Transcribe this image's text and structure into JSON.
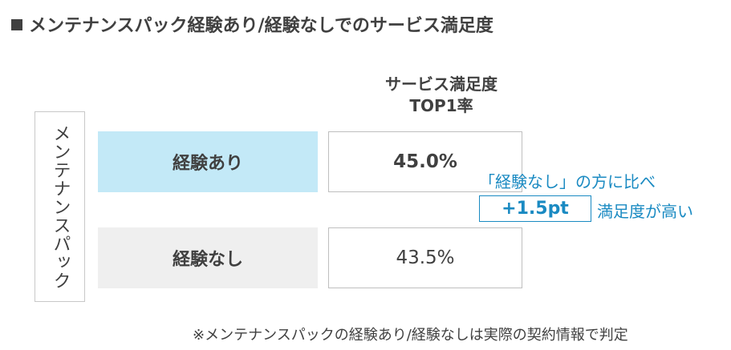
{
  "title": "メンテナンスパック経験あり/経験なしでのサービス満足度",
  "column_header": {
    "line1": "サービス満足度",
    "line2": "TOP1率"
  },
  "group_label": "メンテナンスパック",
  "callout": {
    "line1": "「経験なし」の方に比べ",
    "diff": "+1.5pt",
    "line2": "満足度が高い"
  },
  "footnote": "※メンテナンスパックの経験あり/経験なしは実際の契約情報で判定",
  "colors": {
    "row1_fill": "#c3e9f7",
    "row2_fill": "#efefef",
    "accent": "#1a8ac2",
    "text": "#404040"
  },
  "chart_data": {
    "type": "table",
    "title": "メンテナンスパック経験あり/経験なしでのサービス満足度",
    "columns": [
      "サービス満足度 TOP1率"
    ],
    "rows": [
      {
        "label": "経験あり",
        "value": 45.0,
        "display": "45.0%"
      },
      {
        "label": "経験なし",
        "value": 43.5,
        "display": "43.5%"
      }
    ],
    "annotation": {
      "text": "「経験なし」の方に比べ +1.5pt 満足度が高い",
      "difference_pt": 1.5
    }
  }
}
